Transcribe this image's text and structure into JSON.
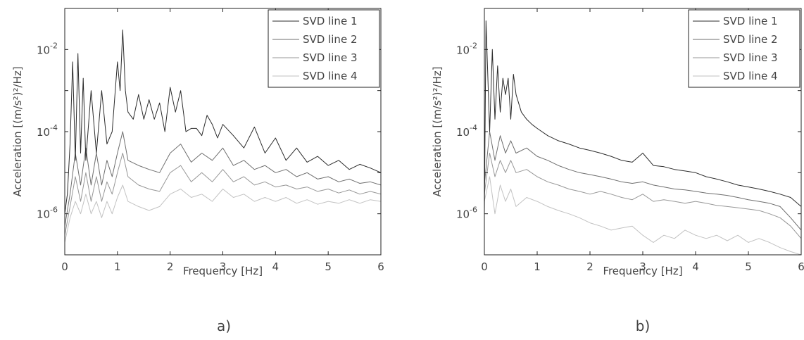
{
  "chart_data": [
    {
      "type": "line",
      "panel_label": "a)",
      "xlabel": "Frequency [Hz]",
      "ylabel": "Acceleration [(m/s²)²/Hz]",
      "xlim": [
        0,
        6
      ],
      "ylim": [
        1e-07,
        0.1
      ],
      "yscale": "log",
      "xticks": [
        "0",
        "1",
        "2",
        "3",
        "4",
        "5",
        "6"
      ],
      "yticks": [
        {
          "value": 0.01,
          "base": "10",
          "exp": "-2"
        },
        {
          "value": 0.0001,
          "base": "10",
          "exp": "-4"
        },
        {
          "value": 1e-06,
          "base": "10",
          "exp": "-6"
        }
      ],
      "grid": false,
      "legend_position": "top-right",
      "series": [
        {
          "name": "SVD line 1",
          "color": "#2b2b2b",
          "x": [
            0.0,
            0.05,
            0.1,
            0.15,
            0.2,
            0.25,
            0.3,
            0.35,
            0.4,
            0.5,
            0.6,
            0.7,
            0.8,
            0.9,
            1.0,
            1.05,
            1.1,
            1.15,
            1.2,
            1.3,
            1.4,
            1.5,
            1.6,
            1.7,
            1.8,
            1.9,
            2.0,
            2.1,
            2.2,
            2.3,
            2.4,
            2.5,
            2.6,
            2.7,
            2.8,
            2.9,
            3.0,
            3.2,
            3.4,
            3.6,
            3.8,
            4.0,
            4.2,
            4.4,
            4.6,
            4.8,
            5.0,
            5.2,
            5.4,
            5.6,
            5.8,
            6.0
          ],
          "y": [
            1e-06,
            3e-06,
            5e-05,
            0.005,
            2e-05,
            0.008,
            3e-05,
            0.002,
            2e-05,
            0.001,
            3e-05,
            0.001,
            5e-05,
            0.0001,
            0.005,
            0.001,
            0.03,
            0.001,
            0.0003,
            0.0002,
            0.0008,
            0.0002,
            0.0006,
            0.0002,
            0.0005,
            0.0001,
            0.0012,
            0.0003,
            0.001,
            0.0001,
            0.00012,
            0.00012,
            8e-05,
            0.00025,
            0.00015,
            7e-05,
            0.00015,
            8e-05,
            4e-05,
            0.00013,
            3e-05,
            7e-05,
            2e-05,
            4e-05,
            1.8e-05,
            2.5e-05,
            1.5e-05,
            2e-05,
            1.2e-05,
            1.6e-05,
            1.3e-05,
            1e-05
          ]
        },
        {
          "name": "SVD line 2",
          "color": "#6e6e6e",
          "x": [
            0.0,
            0.1,
            0.2,
            0.3,
            0.4,
            0.5,
            0.6,
            0.7,
            0.8,
            0.9,
            1.0,
            1.1,
            1.2,
            1.4,
            1.6,
            1.8,
            2.0,
            2.2,
            2.4,
            2.6,
            2.8,
            3.0,
            3.2,
            3.4,
            3.6,
            3.8,
            4.0,
            4.2,
            4.4,
            4.6,
            4.8,
            5.0,
            5.2,
            5.4,
            5.6,
            5.8,
            6.0
          ],
          "y": [
            5e-07,
            3e-06,
            3e-05,
            5e-06,
            4e-05,
            5e-06,
            3e-05,
            5e-06,
            2e-05,
            8e-06,
            3e-05,
            0.0001,
            2e-05,
            1.5e-05,
            1.2e-05,
            1e-05,
            3e-05,
            5e-05,
            1.8e-05,
            3e-05,
            2e-05,
            4e-05,
            1.5e-05,
            2e-05,
            1.2e-05,
            1.5e-05,
            1e-05,
            1.2e-05,
            8e-06,
            1e-05,
            7e-06,
            8e-06,
            6e-06,
            7e-06,
            5.5e-06,
            6e-06,
            5e-06
          ]
        },
        {
          "name": "SVD line 3",
          "color": "#979797",
          "x": [
            0.0,
            0.1,
            0.2,
            0.3,
            0.4,
            0.5,
            0.6,
            0.7,
            0.8,
            0.9,
            1.0,
            1.1,
            1.2,
            1.4,
            1.6,
            1.8,
            2.0,
            2.2,
            2.4,
            2.6,
            2.8,
            3.0,
            3.2,
            3.4,
            3.6,
            3.8,
            4.0,
            4.2,
            4.4,
            4.6,
            4.8,
            5.0,
            5.2,
            5.4,
            5.6,
            5.8,
            6.0
          ],
          "y": [
            3e-07,
            1.5e-06,
            8e-06,
            2e-06,
            1e-05,
            2e-06,
            8e-06,
            2e-06,
            6e-06,
            3e-06,
            1e-05,
            3e-05,
            8e-06,
            5e-06,
            4e-06,
            3.5e-06,
            1e-05,
            1.5e-05,
            6e-06,
            1e-05,
            6e-06,
            1.2e-05,
            6e-06,
            8e-06,
            5e-06,
            6e-06,
            4.5e-06,
            5e-06,
            4e-06,
            4.5e-06,
            3.5e-06,
            4e-06,
            3.2e-06,
            3.8e-06,
            3e-06,
            3.5e-06,
            3e-06
          ]
        },
        {
          "name": "SVD line 4",
          "color": "#c2c2c2",
          "x": [
            0.0,
            0.1,
            0.2,
            0.3,
            0.4,
            0.5,
            0.6,
            0.7,
            0.8,
            0.9,
            1.0,
            1.1,
            1.2,
            1.4,
            1.6,
            1.8,
            2.0,
            2.2,
            2.4,
            2.6,
            2.8,
            3.0,
            3.2,
            3.4,
            3.6,
            3.8,
            4.0,
            4.2,
            4.4,
            4.6,
            4.8,
            5.0,
            5.2,
            5.4,
            5.6,
            5.8,
            6.0
          ],
          "y": [
            2e-07,
            8e-07,
            2e-06,
            1e-06,
            3e-06,
            1e-06,
            2e-06,
            8e-07,
            2e-06,
            1e-06,
            2.5e-06,
            5e-06,
            2e-06,
            1.5e-06,
            1.2e-06,
            1.5e-06,
            3e-06,
            4e-06,
            2.5e-06,
            3e-06,
            2e-06,
            4e-06,
            2.5e-06,
            3e-06,
            2e-06,
            2.5e-06,
            2e-06,
            2.5e-06,
            1.8e-06,
            2.2e-06,
            1.7e-06,
            2e-06,
            1.8e-06,
            2.2e-06,
            1.8e-06,
            2.2e-06,
            2e-06
          ]
        }
      ]
    },
    {
      "type": "line",
      "panel_label": "b)",
      "xlabel": "Frequency [Hz]",
      "ylabel": "Acceleration [(m/s²)²/Hz]",
      "xlim": [
        0,
        6
      ],
      "ylim": [
        1e-07,
        0.1
      ],
      "yscale": "log",
      "xticks": [
        "0",
        "1",
        "2",
        "3",
        "4",
        "5",
        "6"
      ],
      "yticks": [
        {
          "value": 0.01,
          "base": "10",
          "exp": "-2"
        },
        {
          "value": 0.0001,
          "base": "10",
          "exp": "-4"
        },
        {
          "value": 1e-06,
          "base": "10",
          "exp": "-6"
        }
      ],
      "grid": false,
      "legend_position": "top-right",
      "series": [
        {
          "name": "SVD line 1",
          "color": "#2b2b2b",
          "x": [
            0.0,
            0.03,
            0.1,
            0.15,
            0.2,
            0.25,
            0.3,
            0.35,
            0.4,
            0.45,
            0.5,
            0.55,
            0.6,
            0.7,
            0.8,
            0.9,
            1.0,
            1.2,
            1.4,
            1.6,
            1.8,
            2.0,
            2.2,
            2.4,
            2.6,
            2.8,
            3.0,
            3.2,
            3.4,
            3.6,
            3.8,
            4.0,
            4.2,
            4.4,
            4.6,
            4.8,
            5.0,
            5.2,
            5.4,
            5.6,
            5.8,
            6.0
          ],
          "y": [
            1e-06,
            0.05,
            0.0001,
            0.01,
            0.0002,
            0.004,
            0.0003,
            0.002,
            0.0008,
            0.002,
            0.0002,
            0.0025,
            0.0008,
            0.0003,
            0.0002,
            0.00015,
            0.00012,
            8e-05,
            6e-05,
            5e-05,
            4e-05,
            3.5e-05,
            3e-05,
            2.5e-05,
            2e-05,
            1.8e-05,
            3e-05,
            1.5e-05,
            1.4e-05,
            1.2e-05,
            1.1e-05,
            1e-05,
            8e-06,
            7e-06,
            6e-06,
            5e-06,
            4.5e-06,
            4e-06,
            3.5e-06,
            3e-06,
            2.5e-06,
            1.5e-06
          ]
        },
        {
          "name": "SVD line 2",
          "color": "#6e6e6e",
          "x": [
            0.0,
            0.1,
            0.2,
            0.3,
            0.4,
            0.5,
            0.6,
            0.8,
            1.0,
            1.2,
            1.4,
            1.6,
            1.8,
            2.0,
            2.2,
            2.4,
            2.6,
            2.8,
            3.0,
            3.2,
            3.4,
            3.6,
            3.8,
            4.0,
            4.2,
            4.4,
            4.6,
            4.8,
            5.0,
            5.2,
            5.4,
            5.6,
            5.8,
            6.0
          ],
          "y": [
            5e-06,
            0.0001,
            2e-05,
            8e-05,
            3e-05,
            6e-05,
            3e-05,
            4e-05,
            2.5e-05,
            2e-05,
            1.5e-05,
            1.2e-05,
            1e-05,
            9e-06,
            8e-06,
            7e-06,
            6e-06,
            5.5e-06,
            6e-06,
            5e-06,
            4.5e-06,
            4e-06,
            3.8e-06,
            3.5e-06,
            3.2e-06,
            3e-06,
            2.8e-06,
            2.5e-06,
            2.2e-06,
            2e-06,
            1.8e-06,
            1.5e-06,
            8e-07,
            4e-07
          ]
        },
        {
          "name": "SVD line 3",
          "color": "#979797",
          "x": [
            0.0,
            0.1,
            0.2,
            0.3,
            0.4,
            0.5,
            0.6,
            0.8,
            1.0,
            1.2,
            1.4,
            1.6,
            1.8,
            2.0,
            2.2,
            2.4,
            2.6,
            2.8,
            3.0,
            3.2,
            3.4,
            3.6,
            3.8,
            4.0,
            4.2,
            4.4,
            4.6,
            4.8,
            5.0,
            5.2,
            5.4,
            5.6,
            5.8,
            6.0
          ],
          "y": [
            3e-06,
            3e-05,
            8e-06,
            2e-05,
            1e-05,
            2e-05,
            1e-05,
            1.2e-05,
            8e-06,
            6e-06,
            5e-06,
            4e-06,
            3.5e-06,
            3e-06,
            3.5e-06,
            3e-06,
            2.5e-06,
            2.2e-06,
            3e-06,
            2e-06,
            2.2e-06,
            2e-06,
            1.8e-06,
            2e-06,
            1.8e-06,
            1.6e-06,
            1.5e-06,
            1.4e-06,
            1.3e-06,
            1.2e-06,
            1e-06,
            8e-07,
            5e-07,
            2.5e-07
          ]
        },
        {
          "name": "SVD line 4",
          "color": "#c2c2c2",
          "x": [
            0.0,
            0.1,
            0.2,
            0.3,
            0.4,
            0.5,
            0.6,
            0.8,
            1.0,
            1.2,
            1.4,
            1.6,
            1.8,
            2.0,
            2.2,
            2.4,
            2.6,
            2.8,
            3.0,
            3.2,
            3.4,
            3.6,
            3.8,
            4.0,
            4.2,
            4.4,
            4.6,
            4.8,
            5.0,
            5.2,
            5.4,
            5.6,
            5.8,
            6.0
          ],
          "y": [
            2e-06,
            8e-06,
            1e-06,
            5e-06,
            2e-06,
            4e-06,
            1.5e-06,
            2.5e-06,
            2e-06,
            1.5e-06,
            1.2e-06,
            1e-06,
            8e-07,
            6e-07,
            5e-07,
            4e-07,
            4.5e-07,
            5e-07,
            3e-07,
            2e-07,
            3e-07,
            2.5e-07,
            4e-07,
            3e-07,
            2.5e-07,
            3e-07,
            2.2e-07,
            3e-07,
            2e-07,
            2.5e-07,
            2e-07,
            1.5e-07,
            1.2e-07,
            1e-07
          ]
        }
      ]
    }
  ]
}
